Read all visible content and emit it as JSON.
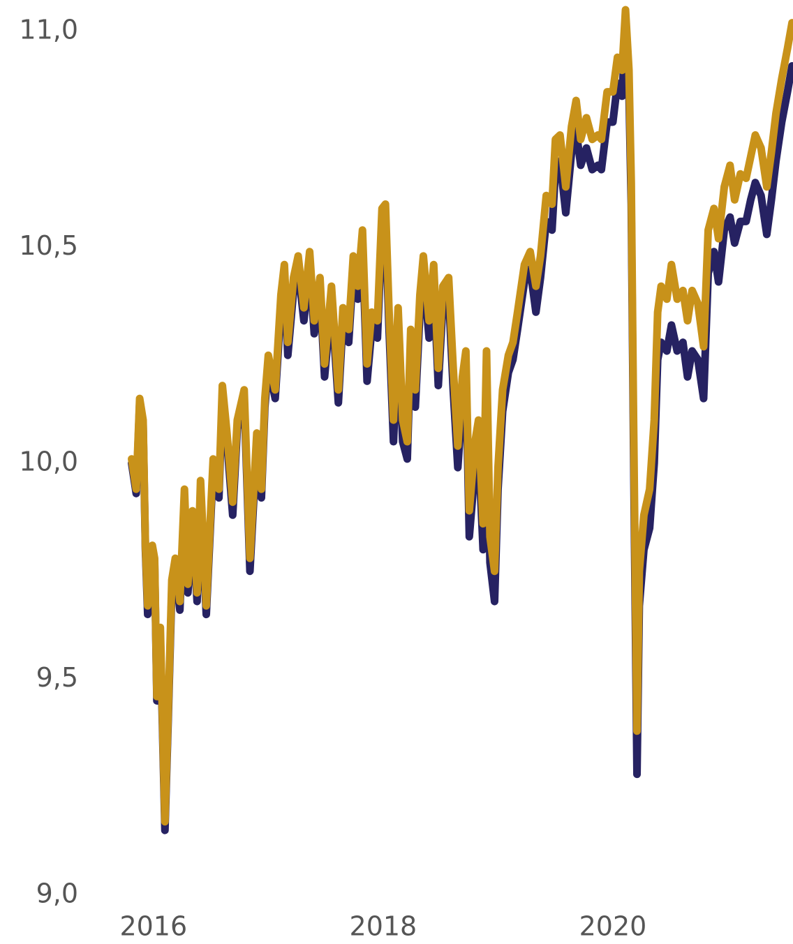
{
  "chart_data": {
    "type": "line",
    "x": [
      2015.81,
      2015.85,
      2015.88,
      2015.91,
      2015.93,
      2015.95,
      2015.99,
      2016.01,
      2016.03,
      2016.06,
      2016.1,
      2016.13,
      2016.16,
      2016.19,
      2016.23,
      2016.27,
      2016.3,
      2016.34,
      2016.38,
      2016.41,
      2016.46,
      2016.52,
      2016.57,
      2016.6,
      2016.64,
      2016.69,
      2016.73,
      2016.79,
      2016.84,
      2016.9,
      2016.94,
      2016.97,
      2017.0,
      2017.06,
      2017.11,
      2017.14,
      2017.17,
      2017.22,
      2017.26,
      2017.31,
      2017.36,
      2017.4,
      2017.45,
      2017.49,
      2017.55,
      2017.61,
      2017.65,
      2017.7,
      2017.74,
      2017.78,
      2017.82,
      2017.86,
      2017.9,
      2017.95,
      2017.99,
      2018.02,
      2018.05,
      2018.09,
      2018.13,
      2018.17,
      2018.21,
      2018.24,
      2018.28,
      2018.32,
      2018.35,
      2018.4,
      2018.44,
      2018.48,
      2018.52,
      2018.57,
      2018.61,
      2018.65,
      2018.69,
      2018.72,
      2018.75,
      2018.8,
      2018.83,
      2018.87,
      2018.9,
      2018.93,
      2018.97,
      2019.0,
      2019.04,
      2019.09,
      2019.13,
      2019.17,
      2019.23,
      2019.28,
      2019.33,
      2019.37,
      2019.42,
      2019.47,
      2019.5,
      2019.54,
      2019.59,
      2019.64,
      2019.68,
      2019.72,
      2019.77,
      2019.82,
      2019.87,
      2019.9,
      2019.95,
      2020.0,
      2020.04,
      2020.08,
      2020.11,
      2020.14,
      2020.16,
      2020.18,
      2020.21,
      2020.23,
      2020.27,
      2020.32,
      2020.36,
      2020.39,
      2020.42,
      2020.47,
      2020.51,
      2020.56,
      2020.61,
      2020.65,
      2020.69,
      2020.74,
      2020.79,
      2020.83,
      2020.88,
      2020.92,
      2020.97,
      2021.02,
      2021.06,
      2021.11,
      2021.16,
      2021.2,
      2021.24,
      2021.29,
      2021.34,
      2021.38,
      2021.42,
      2021.47,
      2021.52,
      2021.56
    ],
    "series": [
      {
        "color": "#262262",
        "values": [
          10.0,
          9.93,
          10.14,
          10.09,
          9.8,
          9.65,
          9.8,
          9.77,
          9.45,
          9.6,
          9.15,
          9.42,
          9.71,
          9.76,
          9.66,
          9.92,
          9.7,
          9.87,
          9.68,
          9.94,
          9.65,
          9.99,
          9.92,
          10.16,
          10.05,
          9.88,
          10.08,
          10.15,
          9.75,
          10.05,
          9.92,
          10.13,
          10.23,
          10.15,
          10.36,
          10.43,
          10.25,
          10.4,
          10.45,
          10.33,
          10.46,
          10.3,
          10.4,
          10.2,
          10.38,
          10.14,
          10.33,
          10.28,
          10.45,
          10.38,
          10.5,
          10.19,
          10.31,
          10.29,
          10.55,
          10.56,
          10.32,
          10.05,
          10.31,
          10.05,
          10.01,
          10.27,
          10.13,
          10.35,
          10.44,
          10.29,
          10.42,
          10.18,
          10.37,
          10.39,
          10.17,
          9.99,
          10.15,
          10.21,
          9.83,
          9.99,
          10.04,
          9.8,
          10.2,
          9.77,
          9.68,
          9.94,
          10.12,
          10.21,
          10.24,
          10.31,
          10.42,
          10.45,
          10.35,
          10.43,
          10.56,
          10.54,
          10.68,
          10.7,
          10.58,
          10.72,
          10.77,
          10.69,
          10.73,
          10.68,
          10.69,
          10.68,
          10.79,
          10.79,
          10.88,
          10.85,
          11.0,
          10.86,
          10.6,
          10.04,
          9.28,
          9.67,
          9.8,
          9.85,
          10.0,
          10.24,
          10.28,
          10.26,
          10.32,
          10.26,
          10.28,
          10.2,
          10.26,
          10.24,
          10.15,
          10.44,
          10.49,
          10.42,
          10.54,
          10.57,
          10.51,
          10.56,
          10.56,
          10.61,
          10.65,
          10.62,
          10.53,
          10.61,
          10.7,
          10.79,
          10.86,
          10.92
        ]
      },
      {
        "color": "#c8921a",
        "values": [
          10.01,
          9.94,
          10.15,
          10.1,
          9.81,
          9.67,
          9.81,
          9.78,
          9.46,
          9.62,
          9.17,
          9.44,
          9.73,
          9.78,
          9.68,
          9.94,
          9.72,
          9.89,
          9.7,
          9.96,
          9.67,
          10.01,
          9.94,
          10.18,
          10.07,
          9.91,
          10.1,
          10.17,
          9.78,
          10.07,
          9.94,
          10.15,
          10.25,
          10.17,
          10.39,
          10.46,
          10.28,
          10.43,
          10.48,
          10.36,
          10.49,
          10.33,
          10.43,
          10.23,
          10.41,
          10.17,
          10.36,
          10.31,
          10.48,
          10.41,
          10.54,
          10.23,
          10.35,
          10.33,
          10.59,
          10.6,
          10.36,
          10.1,
          10.36,
          10.1,
          10.05,
          10.31,
          10.17,
          10.39,
          10.48,
          10.33,
          10.46,
          10.22,
          10.41,
          10.43,
          10.22,
          10.04,
          10.2,
          10.26,
          9.89,
          10.05,
          10.1,
          9.86,
          10.26,
          9.83,
          9.75,
          9.99,
          10.17,
          10.25,
          10.28,
          10.35,
          10.46,
          10.49,
          10.41,
          10.48,
          10.62,
          10.6,
          10.75,
          10.76,
          10.64,
          10.78,
          10.84,
          10.75,
          10.8,
          10.75,
          10.76,
          10.75,
          10.86,
          10.86,
          10.94,
          10.91,
          11.05,
          10.91,
          10.65,
          10.1,
          9.38,
          9.75,
          9.88,
          9.94,
          10.1,
          10.35,
          10.41,
          10.38,
          10.46,
          10.38,
          10.4,
          10.33,
          10.4,
          10.37,
          10.27,
          10.54,
          10.59,
          10.52,
          10.64,
          10.69,
          10.61,
          10.67,
          10.66,
          10.71,
          10.76,
          10.73,
          10.64,
          10.72,
          10.81,
          10.89,
          10.96,
          11.02
        ]
      }
    ],
    "xlim": [
      2015.6,
      2021.55
    ],
    "xticks": [
      2016,
      2018,
      2020
    ],
    "ylim": [
      9,
      11
    ],
    "yticks": [
      {
        "value": 9,
        "label": "9,0"
      },
      {
        "value": 9.5,
        "label": "9,5"
      },
      {
        "value": 10,
        "label": "10,0"
      },
      {
        "value": 10.5,
        "label": "10,5"
      },
      {
        "value": 11,
        "label": "11,0"
      }
    ],
    "grid": false
  }
}
